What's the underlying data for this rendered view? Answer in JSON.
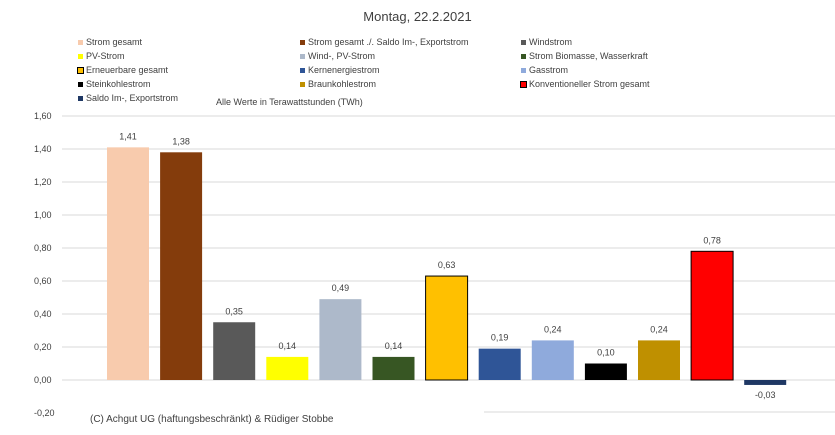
{
  "chart_data": {
    "type": "bar",
    "title": "Montag, 22.2.2021",
    "subtitle": "Alle Werte in Terawattstunden (TWh)",
    "ylim": [
      -0.2,
      1.6
    ],
    "yticks": [
      "1,60",
      "1,40",
      "1,20",
      "1,00",
      "0,80",
      "0,60",
      "0,40",
      "0,20",
      "0,00",
      "-0,20"
    ],
    "ytick_values": [
      1.6,
      1.4,
      1.2,
      1.0,
      0.8,
      0.6,
      0.4,
      0.2,
      0.0,
      -0.2
    ],
    "series": [
      {
        "name": "Strom gesamt",
        "value": 1.41,
        "label": "1,41",
        "color": "#f8cbad"
      },
      {
        "name": "Strom gesamt ./. Saldo Im-, Exportstrom",
        "value": 1.38,
        "label": "1,38",
        "color": "#843c0c"
      },
      {
        "name": "Windstrom",
        "value": 0.35,
        "label": "0,35",
        "color": "#595959"
      },
      {
        "name": "PV-Strom",
        "value": 0.14,
        "label": "0,14",
        "color": "#ffff00"
      },
      {
        "name": "Wind-, PV-Strom",
        "value": 0.49,
        "label": "0,49",
        "color": "#adb9ca"
      },
      {
        "name": "Strom Biomasse, Wasserkraft",
        "value": 0.14,
        "label": "0,14",
        "color": "#375623"
      },
      {
        "name": "Erneuerbare gesamt",
        "value": 0.63,
        "label": "0,63",
        "color": "#ffc000"
      },
      {
        "name": "Kernenergiestrom",
        "value": 0.19,
        "label": "0,19",
        "color": "#2f5597"
      },
      {
        "name": "Gasstrom",
        "value": 0.24,
        "label": "0,24",
        "color": "#8faadc"
      },
      {
        "name": "Steinkohlestrom",
        "value": 0.1,
        "label": "0,10",
        "color": "#000000"
      },
      {
        "name": "Braunkohlestrom",
        "value": 0.24,
        "label": "0,24",
        "color": "#bf9000"
      },
      {
        "name": "Konventioneller Strom gesamt",
        "value": 0.78,
        "label": "0,78",
        "color": "#ff0000"
      },
      {
        "name": "Saldo Im-, Exportstrom",
        "value": -0.03,
        "label": "-0,03",
        "color": "#1f3864"
      }
    ],
    "bordered_series": [
      "Erneuerbare gesamt",
      "Konventioneller Strom gesamt"
    ]
  },
  "copyright": "(C) Achgut UG (haftungsbeschränkt) & Rüdiger Stobbe"
}
